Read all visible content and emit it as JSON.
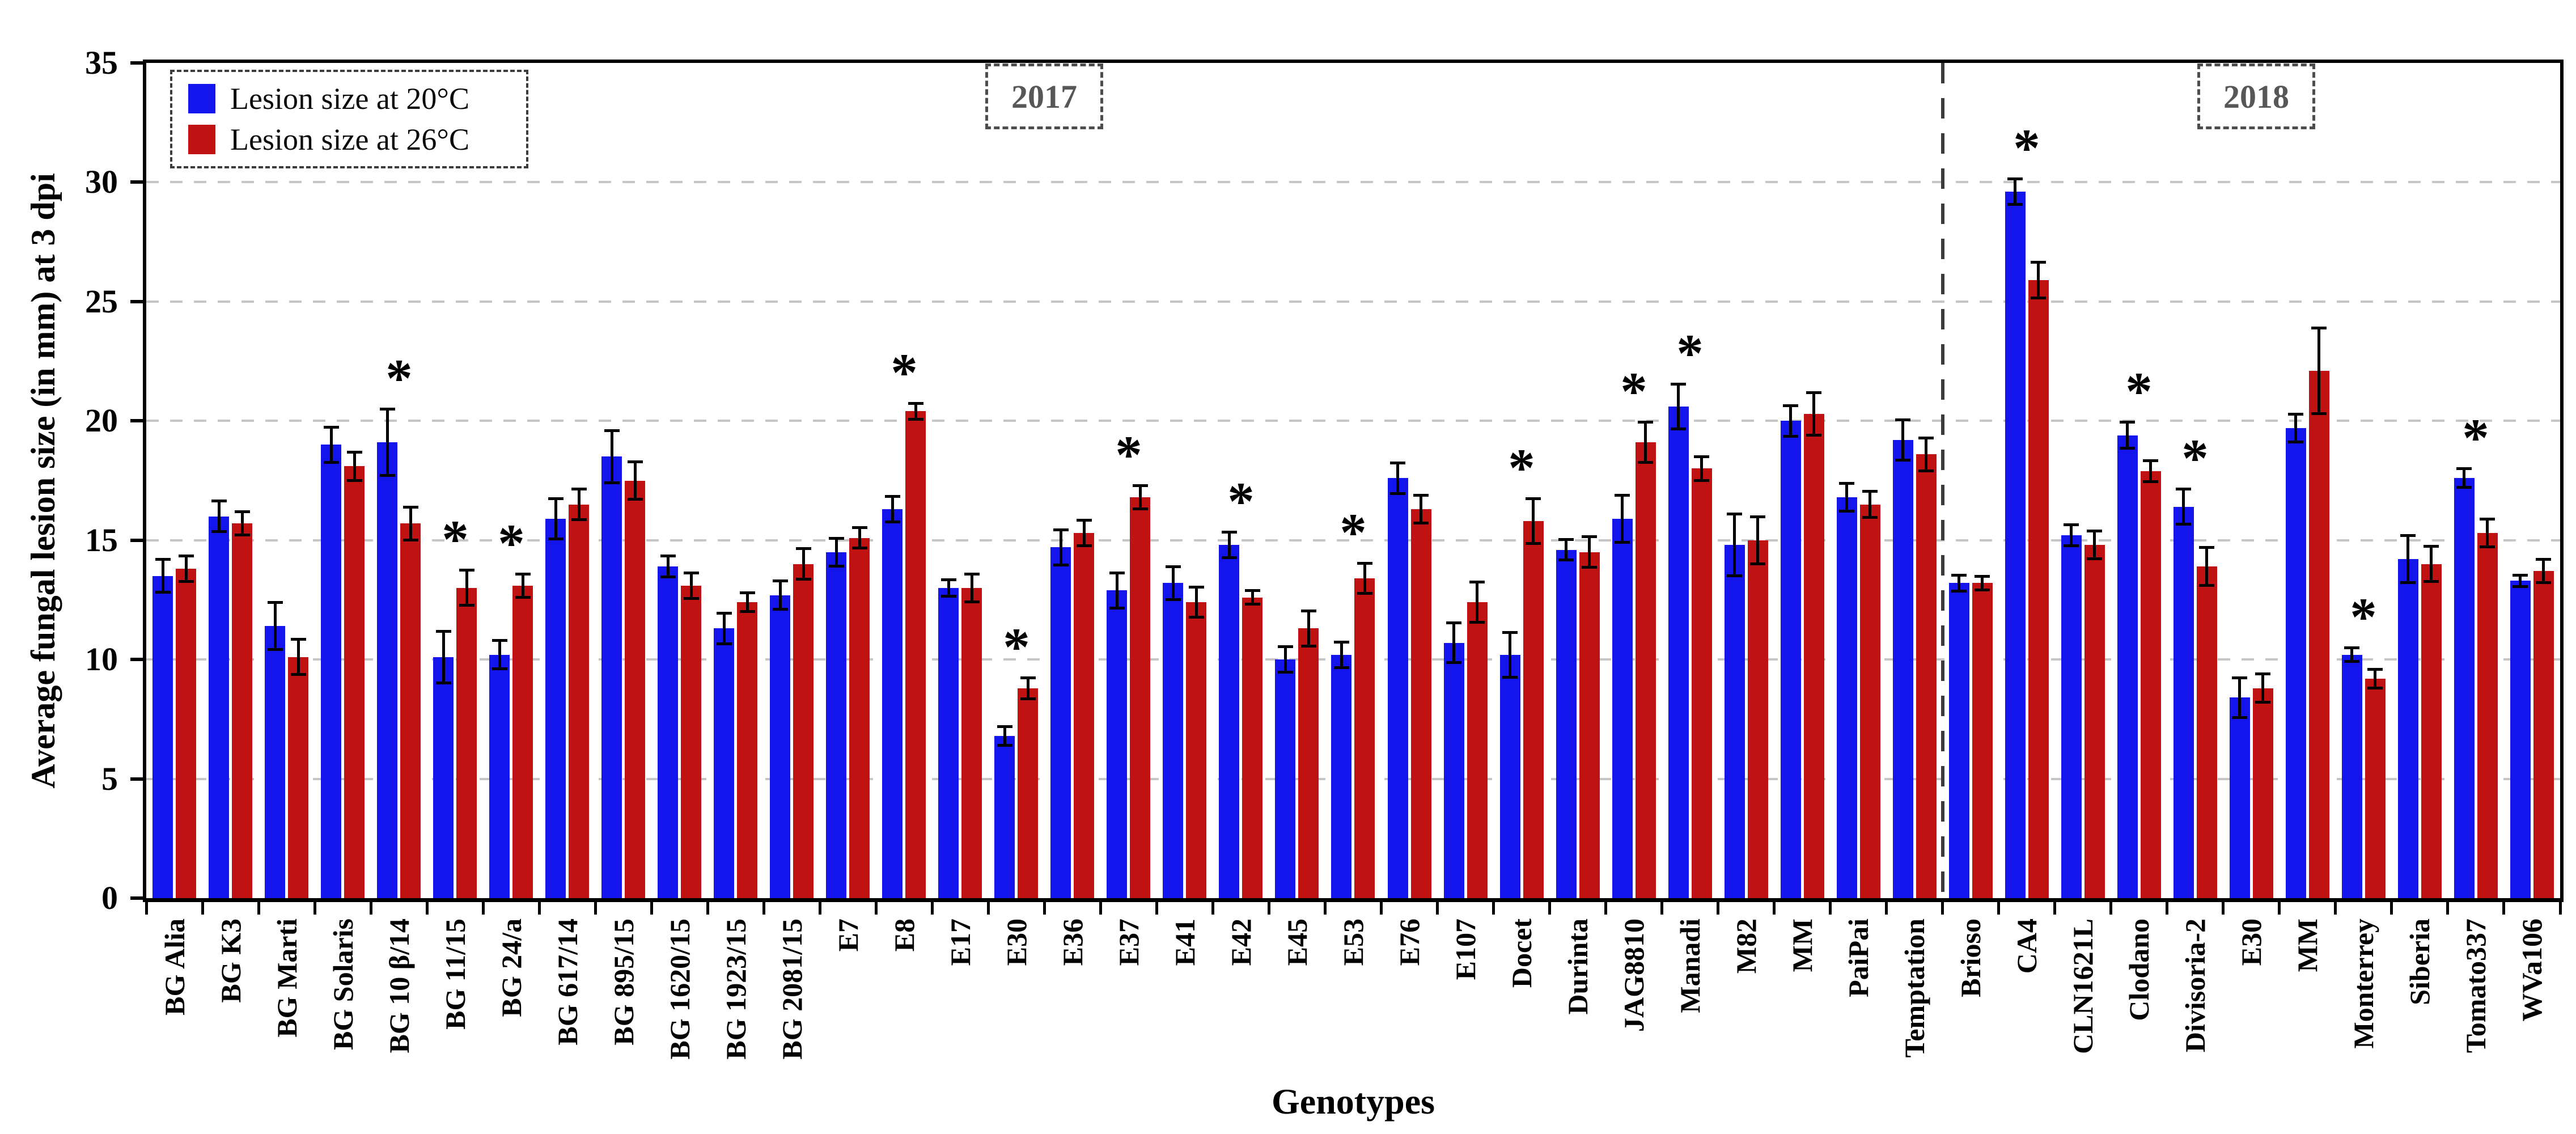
{
  "chart_data": {
    "type": "bar",
    "title": "",
    "xlabel": "Genotypes",
    "ylabel": "Average fungal lesion size (in mm) at 3 dpi",
    "ylim": [
      0,
      35
    ],
    "yticks": [
      0,
      5,
      10,
      15,
      20,
      25,
      30,
      35
    ],
    "grid": "horizontal dashed gridlines at 5,10,15,20,25,30",
    "legend": {
      "position": "top-left",
      "border": "dashed"
    },
    "sections": [
      {
        "label": "2017",
        "start_index": 0,
        "end_index": 31
      },
      {
        "label": "2018",
        "start_index": 32,
        "end_index": 42
      }
    ],
    "divider_after_index": 31,
    "categories": [
      "BG Alia",
      "BG K3",
      "BG Marti",
      "BG Solaris",
      "BG 10 β/14",
      "BG 11/15",
      "BG 24/a",
      "BG 617/14",
      "BG 895/15",
      "BG 1620/15",
      "BG 1923/15",
      "BG 2081/15",
      "E7",
      "E8",
      "E17",
      "E30",
      "E36",
      "E37",
      "E41",
      "E42",
      "E45",
      "E53",
      "E76",
      "E107",
      "Docet",
      "Durinta",
      "JAG8810",
      "Manadi",
      "M82",
      "MM",
      "PaiPai",
      "Temptation",
      "Brioso",
      "CA4",
      "CLN1621L",
      "Clodano",
      "Divisoria-2",
      "E30",
      "MM",
      "Monterrey",
      "Siberia",
      "Tomato337",
      "WVa106"
    ],
    "series": [
      {
        "name": "Lesion size at 20°C",
        "color": "#1414ec",
        "values": [
          13.5,
          16.0,
          11.4,
          19.0,
          19.1,
          10.1,
          10.2,
          15.9,
          18.5,
          13.9,
          11.3,
          12.7,
          14.5,
          16.3,
          13.0,
          6.8,
          14.7,
          12.9,
          13.2,
          14.8,
          10.0,
          10.2,
          17.6,
          10.7,
          10.2,
          14.6,
          15.9,
          20.6,
          14.8,
          20.0,
          16.8,
          19.2,
          13.2,
          29.6,
          15.2,
          19.4,
          16.4,
          8.4,
          19.7,
          10.2,
          14.2,
          17.6,
          13.3
        ],
        "errors": [
          0.7,
          0.65,
          1.0,
          0.75,
          1.4,
          1.1,
          0.6,
          0.85,
          1.1,
          0.45,
          0.65,
          0.6,
          0.6,
          0.55,
          0.35,
          0.4,
          0.75,
          0.75,
          0.7,
          0.55,
          0.55,
          0.55,
          0.65,
          0.85,
          0.95,
          0.45,
          1.0,
          0.95,
          1.3,
          0.65,
          0.6,
          0.85,
          0.35,
          0.55,
          0.45,
          0.55,
          0.75,
          0.85,
          0.6,
          0.3,
          1.0,
          0.4,
          0.25
        ]
      },
      {
        "name": "Lesion size at 26°C",
        "color": "#c01212",
        "values": [
          13.8,
          15.7,
          10.1,
          18.1,
          15.7,
          13.0,
          13.1,
          16.5,
          17.5,
          13.1,
          12.4,
          14.0,
          15.1,
          20.4,
          13.0,
          8.8,
          15.3,
          16.8,
          12.4,
          12.6,
          11.3,
          13.4,
          16.3,
          12.4,
          15.8,
          14.5,
          19.1,
          18.0,
          15.0,
          20.3,
          16.5,
          18.6,
          13.2,
          25.9,
          14.8,
          17.9,
          13.9,
          8.8,
          22.1,
          9.2,
          14.0,
          15.3,
          13.7
        ],
        "errors": [
          0.55,
          0.5,
          0.75,
          0.6,
          0.7,
          0.75,
          0.5,
          0.65,
          0.8,
          0.55,
          0.4,
          0.65,
          0.45,
          0.35,
          0.6,
          0.45,
          0.55,
          0.5,
          0.65,
          0.3,
          0.75,
          0.65,
          0.6,
          0.85,
          0.95,
          0.65,
          0.85,
          0.5,
          1.0,
          0.9,
          0.55,
          0.7,
          0.3,
          0.75,
          0.6,
          0.45,
          0.8,
          0.6,
          1.8,
          0.4,
          0.75,
          0.6,
          0.5
        ]
      }
    ],
    "significant_group_indexes": [
      4,
      5,
      6,
      13,
      15,
      17,
      19,
      21,
      24,
      26,
      27,
      33,
      35,
      36,
      39,
      41
    ],
    "significance_marker": "*"
  }
}
